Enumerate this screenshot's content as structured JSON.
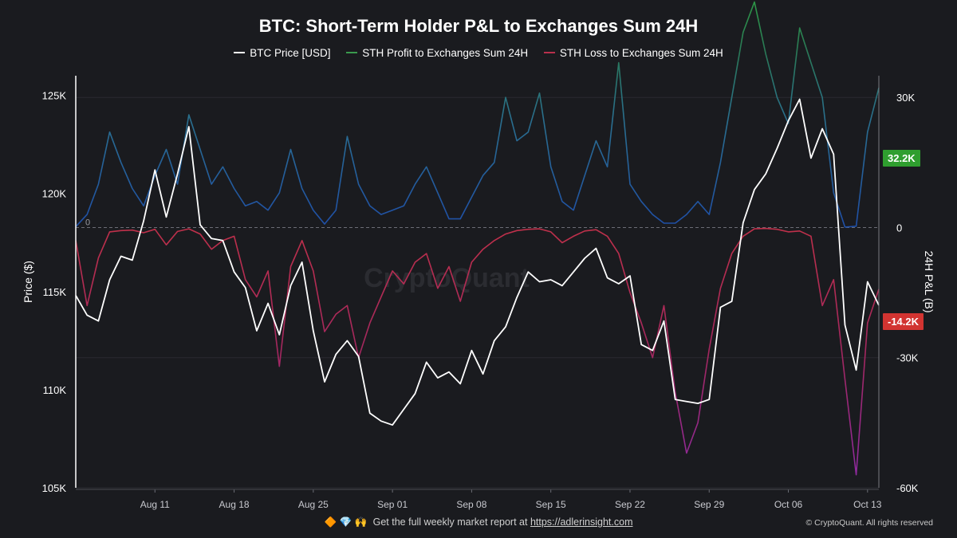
{
  "title": "BTC: Short-Term Holder P&L to Exchanges Sum 24H",
  "legend": {
    "price": "BTC Price [USD]",
    "profit": "STH Profit to Exchanges Sum 24H",
    "loss": "STH Loss to Exchanges Sum 24H"
  },
  "footer": {
    "icons": "🔶 💎 🙌",
    "text": "Get the full weekly market report at",
    "link": "https://adlerinsight.com",
    "copyright": "© CryptoQuant. All rights reserved"
  },
  "watermark": "CryptoQuant",
  "badges": {
    "profit_value": "32.2K",
    "loss_value": "-14.2K"
  },
  "colors": {
    "background": "#1a1b1f",
    "price": "#ffffff",
    "profit": "#3a9a4e",
    "loss": "#b8304c",
    "profit_badge": "#2f9e2f",
    "loss_badge": "#d23431"
  },
  "chart_data": {
    "type": "line",
    "x_axis": {
      "ticks": [
        "Aug 11",
        "Aug 18",
        "Aug 25",
        "Sep 01",
        "Sep 08",
        "Sep 15",
        "Sep 22",
        "Sep 29",
        "Oct 06",
        "Oct 13"
      ],
      "range": [
        "2025-08-04",
        "2025-10-14"
      ]
    },
    "y_left": {
      "label": "Price ($)",
      "range": [
        105000,
        126000
      ],
      "ticks": [
        "105K",
        "110K",
        "115K",
        "120K",
        "125K"
      ]
    },
    "y_right": {
      "label": "24H P&L (B)",
      "range": [
        -60000,
        35000
      ],
      "ticks": [
        "-60K",
        "-30K",
        "0",
        "30K"
      ]
    },
    "grid": true,
    "series": [
      {
        "name": "BTC Price [USD]",
        "points": [
          [
            "2025-08-04",
            114800
          ],
          [
            "2025-08-05",
            113800
          ],
          [
            "2025-08-06",
            113500
          ],
          [
            "2025-08-07",
            115600
          ],
          [
            "2025-08-08",
            116800
          ],
          [
            "2025-08-09",
            116600
          ],
          [
            "2025-08-10",
            118600
          ],
          [
            "2025-08-11",
            121200
          ],
          [
            "2025-08-12",
            118800
          ],
          [
            "2025-08-13",
            121000
          ],
          [
            "2025-08-14",
            123400
          ],
          [
            "2025-08-15",
            118400
          ],
          [
            "2025-08-16",
            117700
          ],
          [
            "2025-08-17",
            117600
          ],
          [
            "2025-08-18",
            116000
          ],
          [
            "2025-08-19",
            115200
          ],
          [
            "2025-08-20",
            113000
          ],
          [
            "2025-08-21",
            114400
          ],
          [
            "2025-08-22",
            112800
          ],
          [
            "2025-08-23",
            115300
          ],
          [
            "2025-08-24",
            116500
          ],
          [
            "2025-08-25",
            113000
          ],
          [
            "2025-08-26",
            110400
          ],
          [
            "2025-08-27",
            111800
          ],
          [
            "2025-08-28",
            112500
          ],
          [
            "2025-08-29",
            111700
          ],
          [
            "2025-08-30",
            108800
          ],
          [
            "2025-08-31",
            108400
          ],
          [
            "2025-09-01",
            108200
          ],
          [
            "2025-09-02",
            109000
          ],
          [
            "2025-09-03",
            109800
          ],
          [
            "2025-09-04",
            111400
          ],
          [
            "2025-09-05",
            110600
          ],
          [
            "2025-09-06",
            110900
          ],
          [
            "2025-09-07",
            110300
          ],
          [
            "2025-09-08",
            112000
          ],
          [
            "2025-09-09",
            110800
          ],
          [
            "2025-09-10",
            112500
          ],
          [
            "2025-09-11",
            113200
          ],
          [
            "2025-09-12",
            114700
          ],
          [
            "2025-09-13",
            116000
          ],
          [
            "2025-09-14",
            115500
          ],
          [
            "2025-09-15",
            115600
          ],
          [
            "2025-09-16",
            115300
          ],
          [
            "2025-09-17",
            116000
          ],
          [
            "2025-09-18",
            116700
          ],
          [
            "2025-09-19",
            117200
          ],
          [
            "2025-09-20",
            115700
          ],
          [
            "2025-09-21",
            115400
          ],
          [
            "2025-09-22",
            115800
          ],
          [
            "2025-09-23",
            112300
          ],
          [
            "2025-09-24",
            112000
          ],
          [
            "2025-09-25",
            113500
          ],
          [
            "2025-09-26",
            109500
          ],
          [
            "2025-09-27",
            109400
          ],
          [
            "2025-09-28",
            109300
          ],
          [
            "2025-09-29",
            109500
          ],
          [
            "2025-09-30",
            114200
          ],
          [
            "2025-10-01",
            114500
          ],
          [
            "2025-10-02",
            118500
          ],
          [
            "2025-10-03",
            120200
          ],
          [
            "2025-10-04",
            121000
          ],
          [
            "2025-10-05",
            122300
          ],
          [
            "2025-10-06",
            123700
          ],
          [
            "2025-10-07",
            124800
          ],
          [
            "2025-10-08",
            121800
          ],
          [
            "2025-10-09",
            123300
          ],
          [
            "2025-10-10",
            122000
          ],
          [
            "2025-10-11",
            113300
          ],
          [
            "2025-10-12",
            111000
          ],
          [
            "2025-10-13",
            115500
          ],
          [
            "2025-10-14",
            114300
          ]
        ]
      },
      {
        "name": "STH Profit to Exchanges Sum 24H",
        "points": [
          [
            "2025-08-04",
            200
          ],
          [
            "2025-08-05",
            3000
          ],
          [
            "2025-08-06",
            10000
          ],
          [
            "2025-08-07",
            22000
          ],
          [
            "2025-08-08",
            15000
          ],
          [
            "2025-08-09",
            9000
          ],
          [
            "2025-08-10",
            5000
          ],
          [
            "2025-08-11",
            12000
          ],
          [
            "2025-08-12",
            18000
          ],
          [
            "2025-08-13",
            10000
          ],
          [
            "2025-08-14",
            26000
          ],
          [
            "2025-08-15",
            18000
          ],
          [
            "2025-08-16",
            10000
          ],
          [
            "2025-08-17",
            14000
          ],
          [
            "2025-08-18",
            9000
          ],
          [
            "2025-08-19",
            5000
          ],
          [
            "2025-08-20",
            6000
          ],
          [
            "2025-08-21",
            4000
          ],
          [
            "2025-08-22",
            8000
          ],
          [
            "2025-08-23",
            18000
          ],
          [
            "2025-08-24",
            9000
          ],
          [
            "2025-08-25",
            4000
          ],
          [
            "2025-08-26",
            800
          ],
          [
            "2025-08-27",
            4000
          ],
          [
            "2025-08-28",
            21000
          ],
          [
            "2025-08-29",
            10000
          ],
          [
            "2025-08-30",
            5000
          ],
          [
            "2025-08-31",
            3000
          ],
          [
            "2025-09-01",
            4000
          ],
          [
            "2025-09-02",
            5000
          ],
          [
            "2025-09-03",
            10000
          ],
          [
            "2025-09-04",
            14000
          ],
          [
            "2025-09-05",
            8000
          ],
          [
            "2025-09-06",
            2000
          ],
          [
            "2025-09-07",
            2000
          ],
          [
            "2025-09-08",
            7000
          ],
          [
            "2025-09-09",
            12000
          ],
          [
            "2025-09-10",
            15000
          ],
          [
            "2025-09-11",
            30000
          ],
          [
            "2025-09-12",
            20000
          ],
          [
            "2025-09-13",
            22000
          ],
          [
            "2025-09-14",
            31000
          ],
          [
            "2025-09-15",
            14000
          ],
          [
            "2025-09-16",
            6000
          ],
          [
            "2025-09-17",
            4000
          ],
          [
            "2025-09-18",
            12000
          ],
          [
            "2025-09-19",
            20000
          ],
          [
            "2025-09-20",
            14000
          ],
          [
            "2025-09-21",
            38000
          ],
          [
            "2025-09-22",
            10000
          ],
          [
            "2025-09-23",
            6000
          ],
          [
            "2025-09-24",
            3000
          ],
          [
            "2025-09-25",
            1000
          ],
          [
            "2025-09-26",
            1000
          ],
          [
            "2025-09-27",
            3000
          ],
          [
            "2025-09-28",
            6000
          ],
          [
            "2025-09-29",
            3000
          ],
          [
            "2025-09-30",
            15000
          ],
          [
            "2025-10-01",
            30000
          ],
          [
            "2025-10-02",
            45000
          ],
          [
            "2025-10-03",
            52000
          ],
          [
            "2025-10-04",
            40000
          ],
          [
            "2025-10-05",
            30000
          ],
          [
            "2025-10-06",
            24000
          ],
          [
            "2025-10-07",
            46000
          ],
          [
            "2025-10-08",
            38000
          ],
          [
            "2025-10-09",
            30000
          ],
          [
            "2025-10-10",
            8000
          ],
          [
            "2025-10-11",
            100
          ],
          [
            "2025-10-12",
            300
          ],
          [
            "2025-10-13",
            22000
          ],
          [
            "2025-10-14",
            32200
          ]
        ]
      },
      {
        "name": "STH Loss to Exchanges Sum 24H",
        "points": [
          [
            "2025-08-04",
            -3000
          ],
          [
            "2025-08-05",
            -18000
          ],
          [
            "2025-08-06",
            -7000
          ],
          [
            "2025-08-07",
            -1000
          ],
          [
            "2025-08-08",
            -700
          ],
          [
            "2025-08-09",
            -600
          ],
          [
            "2025-08-10",
            -1200
          ],
          [
            "2025-08-11",
            -400
          ],
          [
            "2025-08-12",
            -4000
          ],
          [
            "2025-08-13",
            -900
          ],
          [
            "2025-08-14",
            -300
          ],
          [
            "2025-08-15",
            -1500
          ],
          [
            "2025-08-16",
            -5000
          ],
          [
            "2025-08-17",
            -3000
          ],
          [
            "2025-08-18",
            -2000
          ],
          [
            "2025-08-19",
            -12000
          ],
          [
            "2025-08-20",
            -16000
          ],
          [
            "2025-08-21",
            -10000
          ],
          [
            "2025-08-22",
            -32000
          ],
          [
            "2025-08-23",
            -9000
          ],
          [
            "2025-08-24",
            -3000
          ],
          [
            "2025-08-25",
            -10000
          ],
          [
            "2025-08-26",
            -24000
          ],
          [
            "2025-08-27",
            -20000
          ],
          [
            "2025-08-28",
            -18000
          ],
          [
            "2025-08-29",
            -30000
          ],
          [
            "2025-08-30",
            -22000
          ],
          [
            "2025-08-31",
            -16000
          ],
          [
            "2025-09-01",
            -10000
          ],
          [
            "2025-09-02",
            -13000
          ],
          [
            "2025-09-03",
            -8000
          ],
          [
            "2025-09-04",
            -6000
          ],
          [
            "2025-09-05",
            -14000
          ],
          [
            "2025-09-06",
            -9000
          ],
          [
            "2025-09-07",
            -17000
          ],
          [
            "2025-09-08",
            -8000
          ],
          [
            "2025-09-09",
            -5000
          ],
          [
            "2025-09-10",
            -3000
          ],
          [
            "2025-09-11",
            -1500
          ],
          [
            "2025-09-12",
            -700
          ],
          [
            "2025-09-13",
            -400
          ],
          [
            "2025-09-14",
            -300
          ],
          [
            "2025-09-15",
            -1000
          ],
          [
            "2025-09-16",
            -3500
          ],
          [
            "2025-09-17",
            -2000
          ],
          [
            "2025-09-18",
            -800
          ],
          [
            "2025-09-19",
            -500
          ],
          [
            "2025-09-20",
            -2000
          ],
          [
            "2025-09-21",
            -6000
          ],
          [
            "2025-09-22",
            -15000
          ],
          [
            "2025-09-23",
            -22000
          ],
          [
            "2025-09-24",
            -30000
          ],
          [
            "2025-09-25",
            -18000
          ],
          [
            "2025-09-26",
            -38000
          ],
          [
            "2025-09-27",
            -52000
          ],
          [
            "2025-09-28",
            -45000
          ],
          [
            "2025-09-29",
            -28000
          ],
          [
            "2025-09-30",
            -14000
          ],
          [
            "2025-10-01",
            -6000
          ],
          [
            "2025-10-02",
            -2000
          ],
          [
            "2025-10-03",
            -300
          ],
          [
            "2025-10-04",
            -200
          ],
          [
            "2025-10-05",
            -400
          ],
          [
            "2025-10-06",
            -1000
          ],
          [
            "2025-10-07",
            -800
          ],
          [
            "2025-10-08",
            -2000
          ],
          [
            "2025-10-09",
            -18000
          ],
          [
            "2025-10-10",
            -12000
          ],
          [
            "2025-10-11",
            -35000
          ],
          [
            "2025-10-12",
            -57000
          ],
          [
            "2025-10-13",
            -22000
          ],
          [
            "2025-10-14",
            -14200
          ]
        ]
      }
    ]
  }
}
